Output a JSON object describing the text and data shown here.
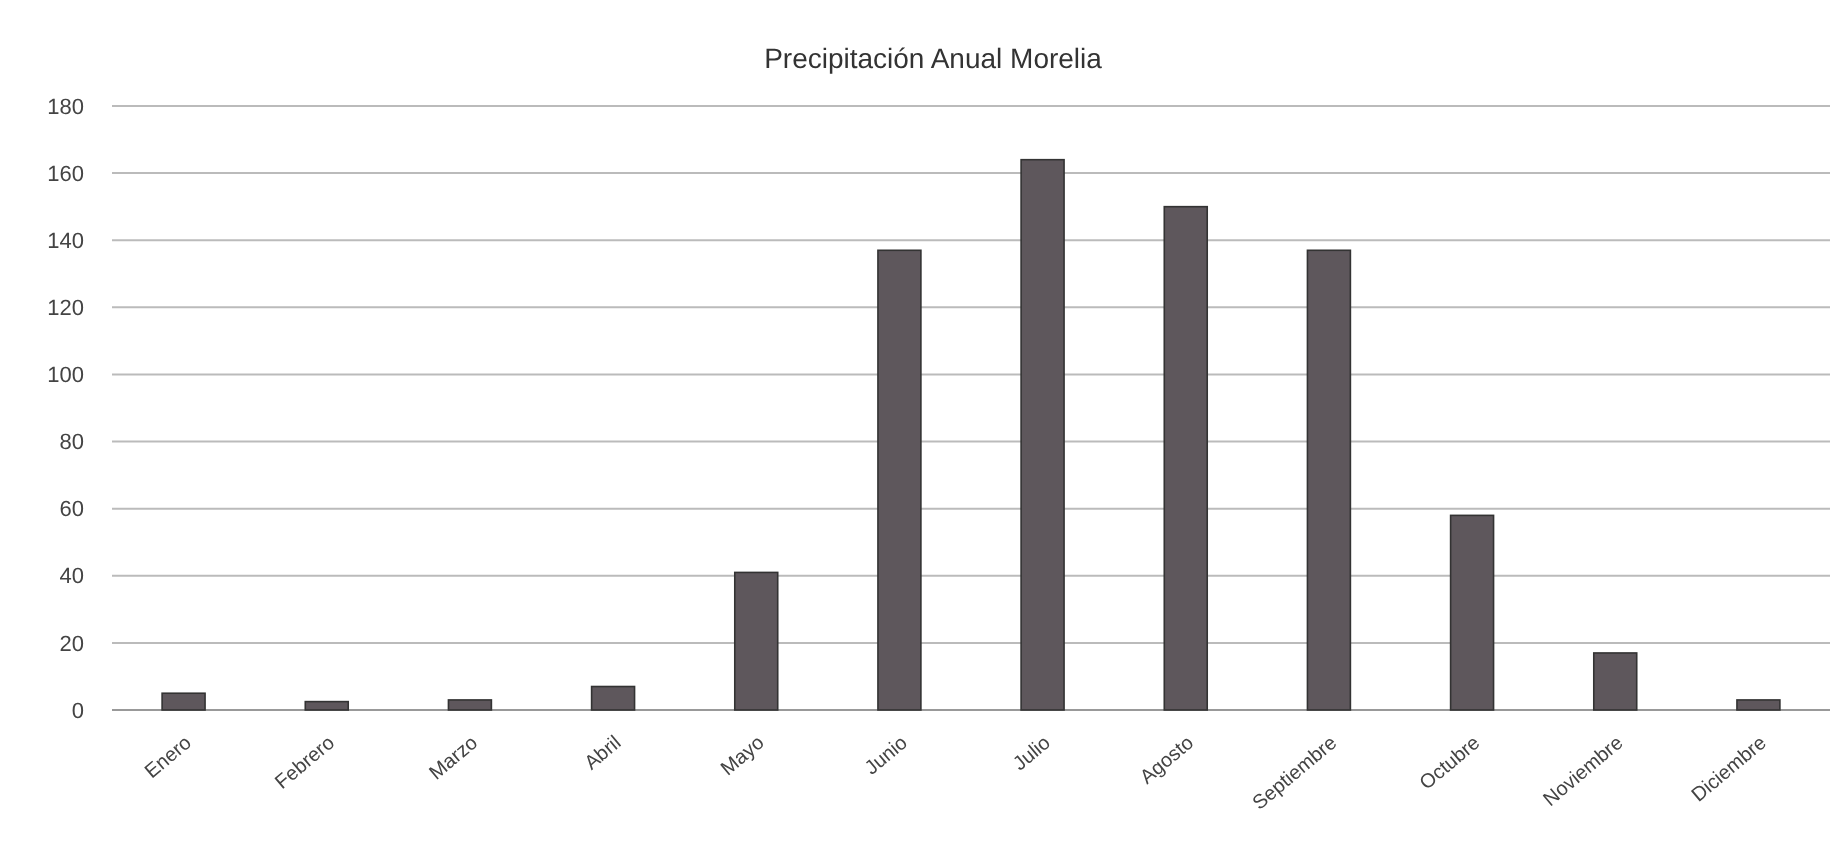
{
  "chart_data": {
    "type": "bar",
    "title": "Precipitación Anual Morelia",
    "categories": [
      "Enero",
      "Febrero",
      "Marzo",
      "Abril",
      "Mayo",
      "Junio",
      "Julio",
      "Agosto",
      "Septiembre",
      "Octubre",
      "Noviembre",
      "Diciembre"
    ],
    "values": [
      5,
      2.5,
      3,
      7,
      41,
      137,
      164,
      150,
      137,
      58,
      17,
      3
    ],
    "color": "#5e575c",
    "ylim": [
      0,
      180
    ],
    "yticks": [
      0,
      20,
      40,
      60,
      80,
      100,
      120,
      140,
      160,
      180
    ],
    "grid": "y"
  }
}
